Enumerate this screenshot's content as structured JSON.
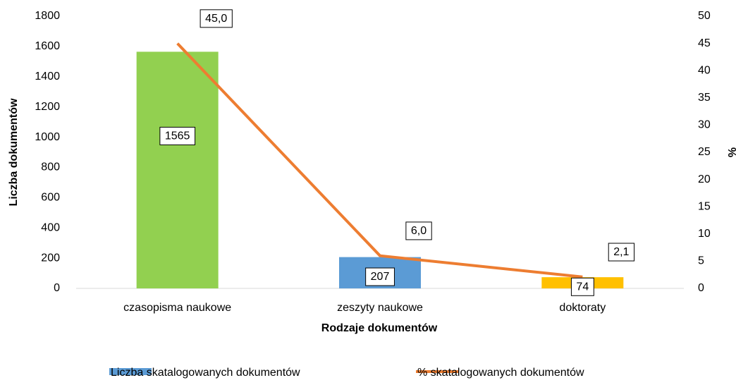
{
  "chart_data": {
    "type": "combo",
    "xlabel": "Rodzaje dokumentów",
    "ylabel": "Liczba dokumentów",
    "y2label": "%",
    "categories": [
      "czasopisma naukowe",
      "zeszyty naukowe",
      "doktoraty"
    ],
    "series": [
      {
        "name": "Liczba skatalogowanych dokumentów",
        "type": "bar",
        "color": "#5b9bd5",
        "colors": [
          "#92d050",
          "#5b9bd5",
          "#ffc000"
        ],
        "values": [
          1565,
          207,
          74
        ]
      },
      {
        "name": "% skatalogowanych dokumentów",
        "type": "line",
        "axis": "y2",
        "color": "#ed7d31",
        "values": [
          45.0,
          6.0,
          2.1
        ],
        "value_labels": [
          "45,0",
          "6,0",
          "2,1"
        ]
      }
    ],
    "ylim": [
      0,
      1800
    ],
    "yticks": [
      0,
      200,
      400,
      600,
      800,
      1000,
      1200,
      1400,
      1600,
      1800
    ],
    "y2lim": [
      0,
      50
    ],
    "y2ticks": [
      0,
      5,
      10,
      15,
      20,
      25,
      30,
      35,
      40,
      45,
      50
    ],
    "grid": false,
    "legend": "bottom"
  }
}
